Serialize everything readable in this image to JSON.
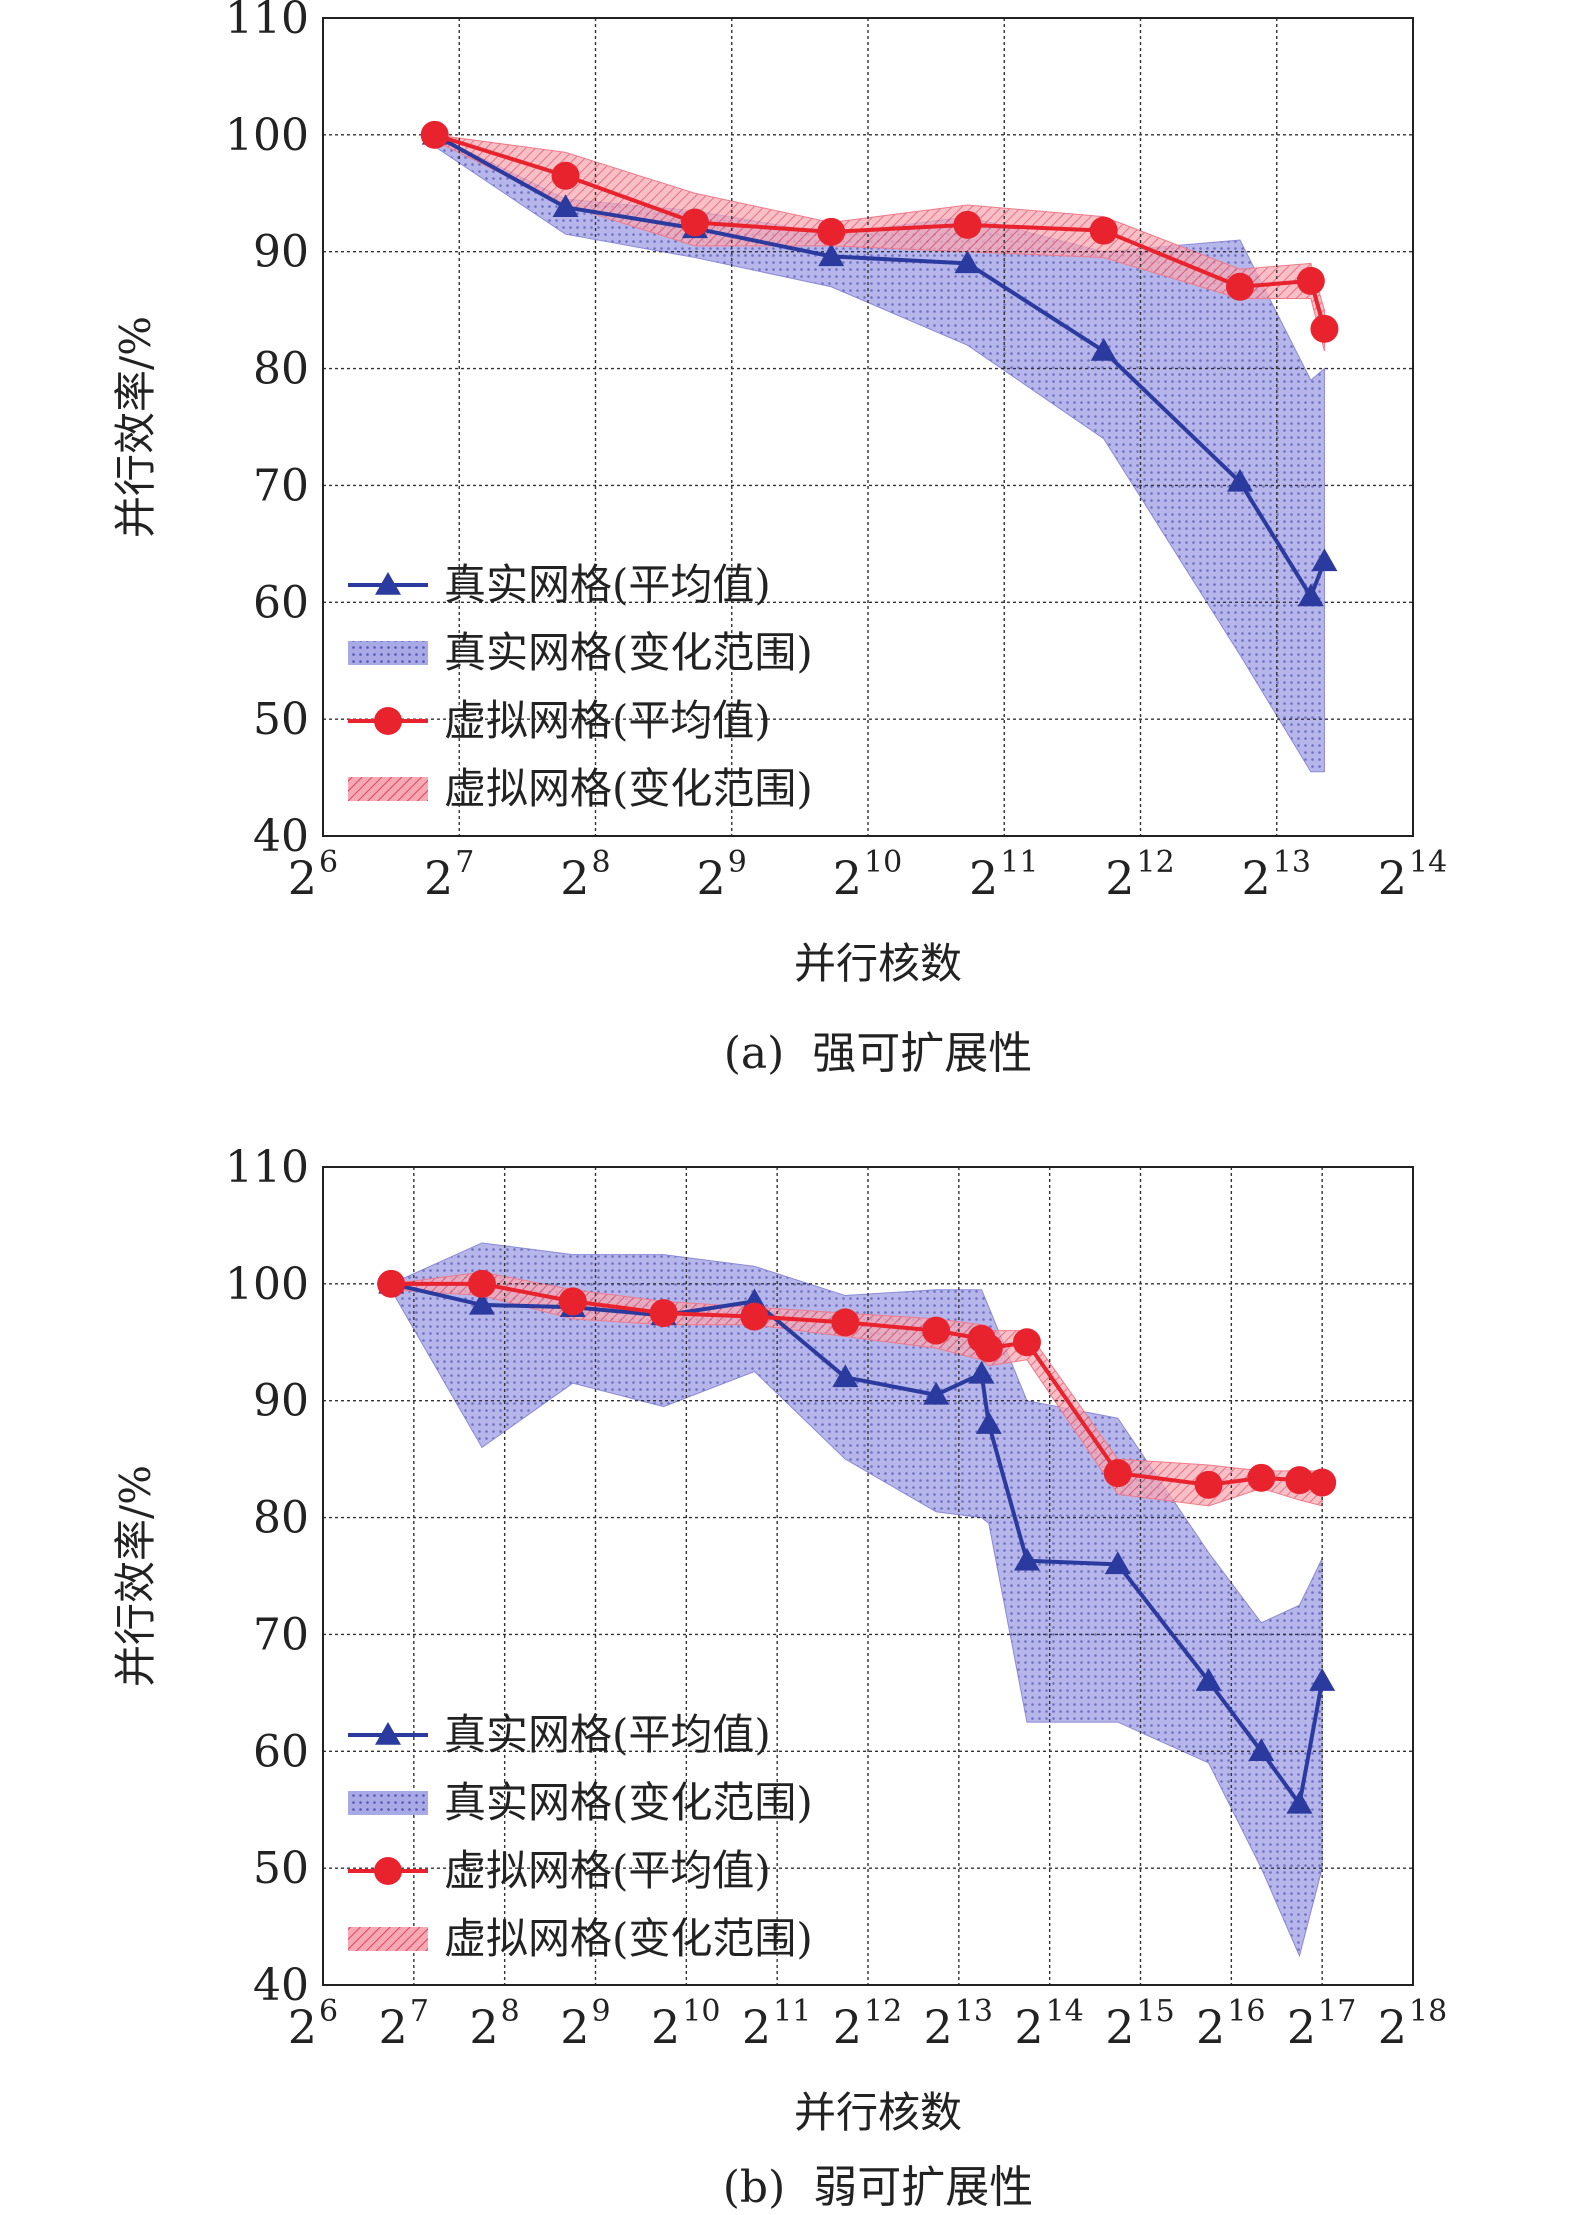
{
  "chart_data": [
    {
      "type": "line",
      "caption": "(a)  强可扩展性",
      "xlabel": "并行核数",
      "ylabel": "并行效率/%",
      "x_scale": "log2",
      "xlim_exp": [
        6,
        14
      ],
      "ylim": [
        40,
        110
      ],
      "yticks": [
        "40",
        "50",
        "60",
        "70",
        "80",
        "90",
        "100",
        "110"
      ],
      "xticks_exp": [
        "6",
        "7",
        "8",
        "9",
        "10",
        "11",
        "12",
        "13",
        "14"
      ],
      "xtick_base": "2",
      "grid": true,
      "legend": {
        "position": "lower-left",
        "entries": [
          "真实网格(平均值)",
          "真实网格(变化范围)",
          "虚拟网格(平均值)",
          "虚拟网格(变化范围)"
        ]
      },
      "series": [
        {
          "name": "真实网格(平均值)",
          "color": "#2b3a9e",
          "marker": "triangle",
          "x_exp": [
            6.82,
            7.78,
            8.73,
            9.73,
            10.73,
            11.73,
            12.73,
            13.25,
            13.35
          ],
          "y": [
            100,
            93.8,
            92.0,
            89.6,
            89.0,
            81.5,
            70.3,
            60.5,
            63.5
          ]
        },
        {
          "name": "虚拟网格(平均值)",
          "color": "#e8232e",
          "marker": "circle",
          "x_exp": [
            6.82,
            7.78,
            8.73,
            9.73,
            10.73,
            11.73,
            12.73,
            13.25,
            13.35
          ],
          "y": [
            100,
            96.5,
            92.5,
            91.7,
            92.3,
            91.8,
            87.0,
            87.5,
            83.4
          ]
        }
      ],
      "bands": [
        {
          "name": "真实网格(变化范围)",
          "color": "#8a8ad8",
          "x_exp": [
            6.82,
            7.78,
            8.73,
            9.73,
            10.73,
            11.73,
            12.73,
            13.25,
            13.35
          ],
          "upper": [
            100,
            94.5,
            93.5,
            91.5,
            93.0,
            90.0,
            91.0,
            79.0,
            80.0
          ],
          "lower": [
            99.0,
            91.5,
            89.5,
            87.0,
            82.0,
            74.0,
            55.5,
            45.5,
            45.5
          ]
        },
        {
          "name": "虚拟网格(变化范围)",
          "color": "#f07a8a",
          "x_exp": [
            6.82,
            7.78,
            8.73,
            9.73,
            10.73,
            11.73,
            12.73,
            13.25,
            13.35
          ],
          "upper": [
            100,
            98.5,
            95.0,
            92.5,
            94.0,
            93.0,
            88.5,
            89.0,
            85.0
          ],
          "lower": [
            99.5,
            94.0,
            90.5,
            90.5,
            90.0,
            89.5,
            86.0,
            86.0,
            81.5
          ]
        }
      ]
    },
    {
      "type": "line",
      "caption": "(b)  弱可扩展性",
      "xlabel": "并行核数",
      "ylabel": "并行效率/%",
      "x_scale": "log2",
      "xlim_exp": [
        6,
        18
      ],
      "ylim": [
        40,
        110
      ],
      "yticks": [
        "40",
        "50",
        "60",
        "70",
        "80",
        "90",
        "100",
        "110"
      ],
      "xticks_exp": [
        "6",
        "7",
        "8",
        "9",
        "10",
        "11",
        "12",
        "13",
        "14",
        "15",
        "16",
        "17",
        "18"
      ],
      "xtick_base": "2",
      "grid": true,
      "legend": {
        "position": "lower-left",
        "entries": [
          "真实网格(平均值)",
          "真实网格(变化范围)",
          "虚拟网格(平均值)",
          "虚拟网格(变化范围)"
        ]
      },
      "series": [
        {
          "name": "真实网格(平均值)",
          "color": "#2b3a9e",
          "marker": "triangle",
          "x_exp": [
            6.75,
            7.75,
            8.75,
            9.75,
            10.75,
            11.75,
            12.75,
            13.25,
            13.33,
            13.75,
            14.75,
            15.75,
            16.33,
            16.75,
            17.0
          ],
          "y": [
            100,
            98.2,
            98.0,
            97.3,
            98.5,
            92.0,
            90.5,
            92.3,
            88.0,
            76.3,
            76.0,
            66.0,
            60.0,
            55.5,
            66.0
          ]
        },
        {
          "name": "虚拟网格(平均值)",
          "color": "#e8232e",
          "marker": "circle",
          "x_exp": [
            6.75,
            7.75,
            8.75,
            9.75,
            10.75,
            11.75,
            12.75,
            13.25,
            13.33,
            13.75,
            14.75,
            15.75,
            16.33,
            16.75,
            17.0
          ],
          "y": [
            100,
            100,
            98.5,
            97.5,
            97.2,
            96.7,
            96.0,
            95.3,
            94.5,
            95.0,
            83.8,
            82.8,
            83.4,
            83.2,
            83.0
          ]
        }
      ],
      "bands": [
        {
          "name": "真实网格(变化范围)",
          "color": "#8a8ad8",
          "x_exp": [
            6.75,
            7.75,
            8.75,
            9.75,
            10.75,
            11.75,
            12.75,
            13.25,
            13.33,
            13.75,
            14.75,
            15.75,
            16.33,
            16.75,
            17.0
          ],
          "upper": [
            100,
            103.5,
            102.5,
            102.5,
            101.5,
            99.0,
            99.5,
            99.5,
            98.0,
            90.0,
            88.5,
            77.0,
            71.0,
            72.5,
            76.5
          ],
          "lower": [
            99.5,
            86.0,
            91.5,
            89.5,
            92.5,
            85.0,
            80.5,
            80.0,
            79.5,
            62.5,
            62.5,
            59.0,
            50.0,
            42.5,
            50.0
          ]
        },
        {
          "name": "虚拟网格(变化范围)",
          "color": "#f07a8a",
          "x_exp": [
            6.75,
            7.75,
            8.75,
            9.75,
            10.75,
            11.75,
            12.75,
            13.25,
            13.33,
            13.75,
            14.75,
            15.75,
            16.33,
            16.75,
            17.0
          ],
          "upper": [
            100,
            101.0,
            99.5,
            98.5,
            98.0,
            97.5,
            97.0,
            96.5,
            96.0,
            96.0,
            85.0,
            84.5,
            84.0,
            84.0,
            84.0
          ],
          "lower": [
            99.5,
            99.0,
            97.0,
            96.5,
            96.5,
            95.5,
            94.5,
            93.5,
            93.0,
            93.5,
            82.0,
            81.0,
            82.5,
            81.5,
            81.0
          ]
        }
      ]
    }
  ]
}
